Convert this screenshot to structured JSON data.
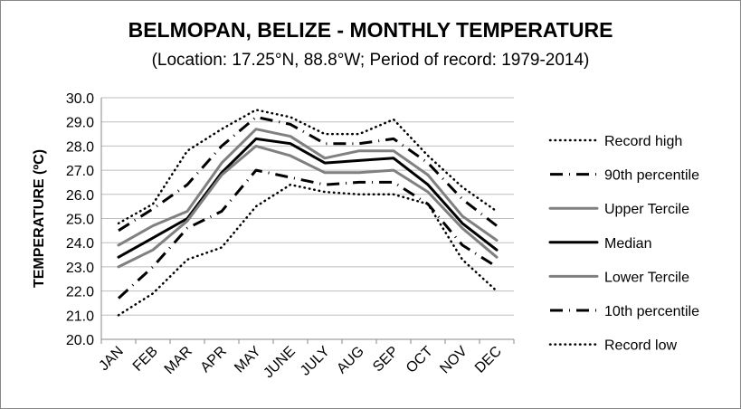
{
  "chart_data": {
    "type": "line",
    "title": "BELMOPAN, BELIZE - MONTHLY TEMPERATURE",
    "subtitle": "(Location: 17.25°N, 88.8°W; Period of record: 1979-2014)",
    "ylabel": "TEMPERATURE (ºC)",
    "xlabel": "",
    "categories": [
      "JAN",
      "FEB",
      "MAR",
      "APR",
      "MAY",
      "JUNE",
      "JULY",
      "AUG",
      "SEP",
      "OCT",
      "NOV",
      "DEC"
    ],
    "ylim": [
      20.0,
      30.0
    ],
    "yticks": [
      "20.0",
      "21.0",
      "22.0",
      "23.0",
      "24.0",
      "25.0",
      "26.0",
      "27.0",
      "28.0",
      "29.0",
      "30.0"
    ],
    "grid": true,
    "legend_position": "right",
    "series": [
      {
        "name": "Record high",
        "style": "dotted",
        "color": "#000000",
        "values": [
          24.8,
          25.6,
          27.8,
          28.7,
          29.5,
          29.2,
          28.5,
          28.5,
          29.1,
          27.6,
          26.3,
          25.3
        ]
      },
      {
        "name": "90th percentile",
        "style": "dashdot",
        "color": "#000000",
        "values": [
          24.5,
          25.4,
          26.4,
          28.0,
          29.2,
          28.9,
          28.1,
          28.1,
          28.3,
          27.3,
          25.8,
          24.7
        ]
      },
      {
        "name": "Upper Tercile",
        "style": "solid",
        "color": "#808080",
        "values": [
          23.9,
          24.7,
          25.3,
          27.3,
          28.7,
          28.4,
          27.5,
          27.8,
          27.8,
          26.8,
          25.1,
          24.1
        ]
      },
      {
        "name": "Median",
        "style": "solid",
        "color": "#000000",
        "values": [
          23.4,
          24.2,
          25.0,
          26.9,
          28.3,
          28.1,
          27.3,
          27.4,
          27.5,
          26.4,
          24.8,
          23.7
        ]
      },
      {
        "name": "Lower Tercile",
        "style": "solid",
        "color": "#808080",
        "values": [
          23.0,
          23.7,
          24.9,
          26.8,
          28.0,
          27.6,
          26.9,
          26.9,
          27.0,
          26.1,
          24.6,
          23.4
        ]
      },
      {
        "name": "10th percentile",
        "style": "dashdot",
        "color": "#000000",
        "values": [
          21.7,
          23.0,
          24.6,
          25.3,
          27.0,
          26.7,
          26.4,
          26.5,
          26.5,
          25.6,
          23.9,
          23.0
        ]
      },
      {
        "name": "Record low",
        "style": "dotted",
        "color": "#000000",
        "values": [
          21.0,
          21.9,
          23.3,
          23.8,
          25.5,
          26.4,
          26.1,
          26.0,
          26.0,
          25.6,
          23.3,
          22.0
        ]
      }
    ]
  }
}
